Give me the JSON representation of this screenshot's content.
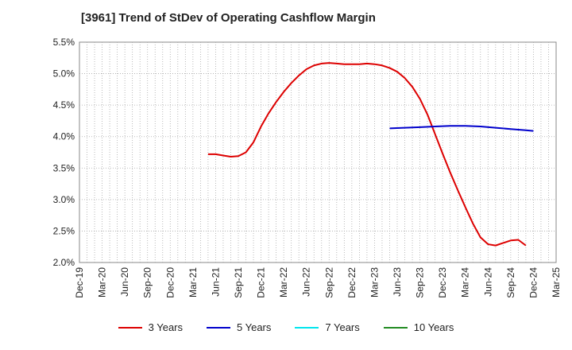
{
  "chart_data": {
    "type": "line",
    "title": "[3961]  Trend of StDev of Operating Cashflow Margin",
    "x_ticks": [
      "Dec-19",
      "Mar-20",
      "Jun-20",
      "Sep-20",
      "Dec-20",
      "Mar-21",
      "Jun-21",
      "Sep-21",
      "Dec-21",
      "Mar-22",
      "Jun-22",
      "Sep-22",
      "Dec-22",
      "Mar-23",
      "Jun-23",
      "Sep-23",
      "Dec-23",
      "Mar-24",
      "Jun-24",
      "Sep-24",
      "Dec-24",
      "Mar-25"
    ],
    "y_ticks": [
      "2.0%",
      "2.5%",
      "3.0%",
      "3.5%",
      "4.0%",
      "4.5%",
      "5.0%",
      "5.5%"
    ],
    "ylim": [
      2.0,
      5.5
    ],
    "xlim": [
      "2019-12",
      "2025-03"
    ],
    "grid": true,
    "legend_position": "bottom",
    "series": [
      {
        "name": "3 Years",
        "color": "#dd0000",
        "points": [
          [
            "2021-05",
            3.72
          ],
          [
            "2021-06",
            3.72
          ],
          [
            "2021-07",
            3.7
          ],
          [
            "2021-08",
            3.68
          ],
          [
            "2021-09",
            3.69
          ],
          [
            "2021-10",
            3.75
          ],
          [
            "2021-11",
            3.91
          ],
          [
            "2021-12",
            4.16
          ],
          [
            "2022-01",
            4.37
          ],
          [
            "2022-02",
            4.55
          ],
          [
            "2022-03",
            4.71
          ],
          [
            "2022-04",
            4.85
          ],
          [
            "2022-05",
            4.97
          ],
          [
            "2022-06",
            5.07
          ],
          [
            "2022-07",
            5.13
          ],
          [
            "2022-08",
            5.16
          ],
          [
            "2022-09",
            5.17
          ],
          [
            "2022-10",
            5.16
          ],
          [
            "2022-11",
            5.15
          ],
          [
            "2022-12",
            5.15
          ],
          [
            "2023-01",
            5.15
          ],
          [
            "2023-02",
            5.16
          ],
          [
            "2023-03",
            5.15
          ],
          [
            "2023-04",
            5.13
          ],
          [
            "2023-05",
            5.09
          ],
          [
            "2023-06",
            5.03
          ],
          [
            "2023-07",
            4.93
          ],
          [
            "2023-08",
            4.79
          ],
          [
            "2023-09",
            4.6
          ],
          [
            "2023-10",
            4.35
          ],
          [
            "2023-11",
            4.04
          ],
          [
            "2023-12",
            3.73
          ],
          [
            "2024-01",
            3.43
          ],
          [
            "2024-02",
            3.15
          ],
          [
            "2024-03",
            2.88
          ],
          [
            "2024-04",
            2.62
          ],
          [
            "2024-05",
            2.4
          ],
          [
            "2024-06",
            2.29
          ],
          [
            "2024-07",
            2.27
          ],
          [
            "2024-08",
            2.31
          ],
          [
            "2024-09",
            2.35
          ],
          [
            "2024-10",
            2.36
          ],
          [
            "2024-11",
            2.27
          ]
        ]
      },
      {
        "name": "5 Years",
        "color": "#0000cc",
        "points": [
          [
            "2023-05",
            4.13
          ],
          [
            "2023-07",
            4.14
          ],
          [
            "2023-09",
            4.15
          ],
          [
            "2023-11",
            4.16
          ],
          [
            "2024-01",
            4.17
          ],
          [
            "2024-03",
            4.17
          ],
          [
            "2024-05",
            4.16
          ],
          [
            "2024-07",
            4.14
          ],
          [
            "2024-09",
            4.12
          ],
          [
            "2024-11",
            4.1
          ],
          [
            "2024-12",
            4.09
          ]
        ]
      },
      {
        "name": "7 Years",
        "color": "#00e5ee",
        "points": []
      },
      {
        "name": "10 Years",
        "color": "#228b22",
        "points": []
      }
    ]
  }
}
